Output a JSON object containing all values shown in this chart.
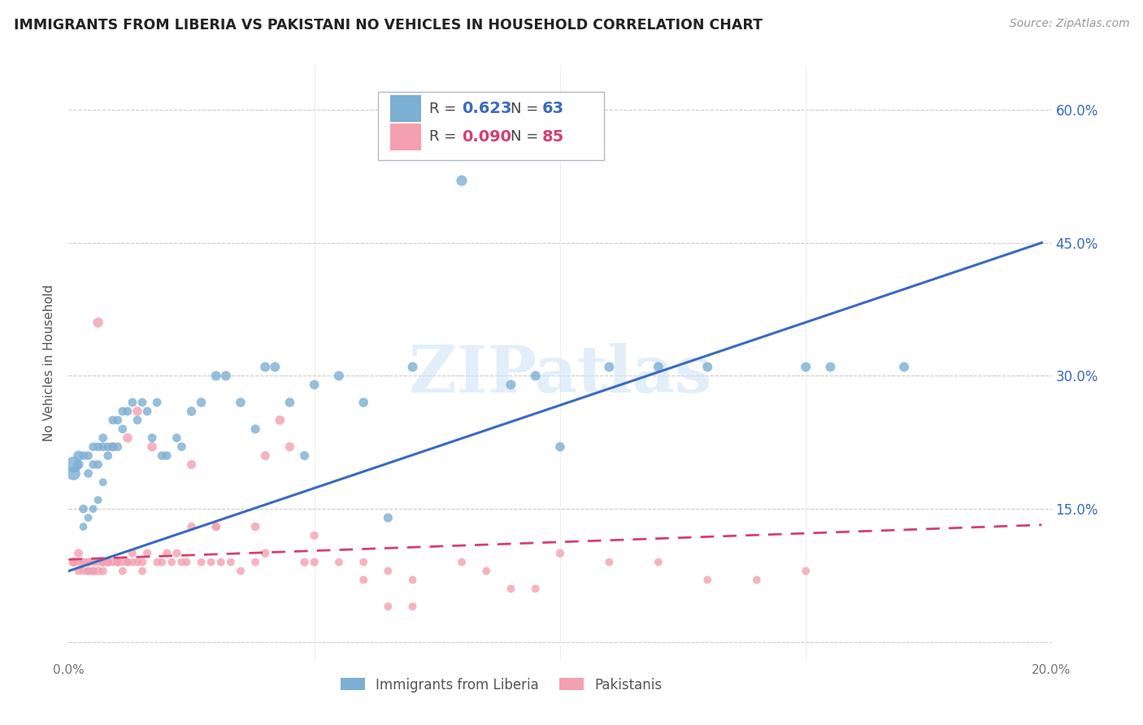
{
  "title": "IMMIGRANTS FROM LIBERIA VS PAKISTANI NO VEHICLES IN HOUSEHOLD CORRELATION CHART",
  "source": "Source: ZipAtlas.com",
  "ylabel": "No Vehicles in Household",
  "watermark": "ZIPatlas",
  "xlim": [
    0.0,
    0.2
  ],
  "ylim": [
    -0.02,
    0.65
  ],
  "xticks": [
    0.0,
    0.05,
    0.1,
    0.15,
    0.2
  ],
  "xtick_labels": [
    "0.0%",
    "",
    "",
    "",
    "20.0%"
  ],
  "ytick_positions": [
    0.0,
    0.15,
    0.3,
    0.45,
    0.6
  ],
  "ytick_labels": [
    "",
    "15.0%",
    "30.0%",
    "45.0%",
    "60.0%"
  ],
  "series1_label": "Immigrants from Liberia",
  "series1_R": "0.623",
  "series1_N": "63",
  "series1_color": "#7bafd4",
  "series2_label": "Pakistanis",
  "series2_R": "0.090",
  "series2_N": "85",
  "series2_color": "#f4a0b0",
  "trendline1_color": "#3a6abf",
  "trendline2_color": "#d44070",
  "series1_x": [
    0.001,
    0.001,
    0.002,
    0.002,
    0.003,
    0.003,
    0.003,
    0.004,
    0.004,
    0.004,
    0.005,
    0.005,
    0.005,
    0.006,
    0.006,
    0.006,
    0.007,
    0.007,
    0.007,
    0.008,
    0.008,
    0.009,
    0.009,
    0.01,
    0.01,
    0.011,
    0.011,
    0.012,
    0.013,
    0.014,
    0.015,
    0.016,
    0.017,
    0.018,
    0.019,
    0.02,
    0.022,
    0.023,
    0.025,
    0.027,
    0.03,
    0.032,
    0.035,
    0.038,
    0.04,
    0.042,
    0.045,
    0.048,
    0.05,
    0.055,
    0.06,
    0.065,
    0.07,
    0.08,
    0.09,
    0.095,
    0.1,
    0.11,
    0.12,
    0.13,
    0.15,
    0.155,
    0.17
  ],
  "series1_y": [
    0.2,
    0.19,
    0.21,
    0.2,
    0.15,
    0.21,
    0.13,
    0.19,
    0.21,
    0.14,
    0.2,
    0.22,
    0.15,
    0.2,
    0.22,
    0.16,
    0.23,
    0.22,
    0.18,
    0.22,
    0.21,
    0.22,
    0.25,
    0.22,
    0.25,
    0.24,
    0.26,
    0.26,
    0.27,
    0.25,
    0.27,
    0.26,
    0.23,
    0.27,
    0.21,
    0.21,
    0.23,
    0.22,
    0.26,
    0.27,
    0.3,
    0.3,
    0.27,
    0.24,
    0.31,
    0.31,
    0.27,
    0.21,
    0.29,
    0.3,
    0.27,
    0.14,
    0.31,
    0.52,
    0.29,
    0.3,
    0.22,
    0.31,
    0.31,
    0.31,
    0.31,
    0.31,
    0.31
  ],
  "series1_sizes": [
    200,
    150,
    80,
    80,
    60,
    60,
    50,
    60,
    60,
    50,
    60,
    60,
    50,
    60,
    60,
    50,
    60,
    60,
    50,
    60,
    60,
    60,
    60,
    60,
    60,
    60,
    60,
    60,
    60,
    60,
    60,
    60,
    60,
    60,
    60,
    60,
    60,
    60,
    70,
    70,
    75,
    75,
    70,
    65,
    75,
    75,
    70,
    65,
    70,
    75,
    70,
    65,
    75,
    90,
    75,
    75,
    70,
    75,
    75,
    75,
    75,
    75,
    75
  ],
  "series2_x": [
    0.001,
    0.001,
    0.001,
    0.002,
    0.002,
    0.002,
    0.003,
    0.003,
    0.003,
    0.004,
    0.004,
    0.004,
    0.004,
    0.005,
    0.005,
    0.005,
    0.006,
    0.006,
    0.006,
    0.007,
    0.007,
    0.007,
    0.008,
    0.008,
    0.008,
    0.009,
    0.009,
    0.01,
    0.01,
    0.01,
    0.011,
    0.011,
    0.012,
    0.012,
    0.012,
    0.013,
    0.013,
    0.014,
    0.014,
    0.015,
    0.015,
    0.016,
    0.017,
    0.018,
    0.019,
    0.02,
    0.021,
    0.022,
    0.023,
    0.024,
    0.025,
    0.027,
    0.029,
    0.03,
    0.031,
    0.033,
    0.035,
    0.038,
    0.04,
    0.043,
    0.045,
    0.048,
    0.05,
    0.055,
    0.06,
    0.065,
    0.07,
    0.08,
    0.09,
    0.1,
    0.11,
    0.12,
    0.13,
    0.14,
    0.15,
    0.025,
    0.03,
    0.038,
    0.04,
    0.05,
    0.06,
    0.065,
    0.07,
    0.085,
    0.095
  ],
  "series2_y": [
    0.09,
    0.09,
    0.09,
    0.08,
    0.1,
    0.09,
    0.08,
    0.09,
    0.09,
    0.08,
    0.09,
    0.09,
    0.08,
    0.08,
    0.08,
    0.09,
    0.08,
    0.36,
    0.09,
    0.09,
    0.09,
    0.08,
    0.09,
    0.09,
    0.09,
    0.09,
    0.22,
    0.09,
    0.09,
    0.09,
    0.09,
    0.08,
    0.09,
    0.23,
    0.09,
    0.09,
    0.1,
    0.26,
    0.09,
    0.09,
    0.08,
    0.1,
    0.22,
    0.09,
    0.09,
    0.1,
    0.09,
    0.1,
    0.09,
    0.09,
    0.2,
    0.09,
    0.09,
    0.13,
    0.09,
    0.09,
    0.08,
    0.09,
    0.1,
    0.25,
    0.22,
    0.09,
    0.09,
    0.09,
    0.09,
    0.04,
    0.04,
    0.09,
    0.06,
    0.1,
    0.09,
    0.09,
    0.07,
    0.07,
    0.08,
    0.13,
    0.13,
    0.13,
    0.21,
    0.12,
    0.07,
    0.08,
    0.07,
    0.08,
    0.06
  ],
  "series2_sizes": [
    60,
    60,
    55,
    50,
    60,
    50,
    50,
    55,
    50,
    55,
    50,
    55,
    50,
    55,
    50,
    50,
    60,
    80,
    50,
    55,
    50,
    55,
    50,
    55,
    50,
    50,
    70,
    50,
    50,
    50,
    50,
    50,
    50,
    70,
    50,
    50,
    55,
    70,
    50,
    55,
    50,
    55,
    70,
    50,
    50,
    55,
    50,
    55,
    50,
    50,
    65,
    50,
    50,
    55,
    50,
    50,
    50,
    50,
    55,
    70,
    65,
    55,
    55,
    50,
    50,
    50,
    50,
    50,
    50,
    55,
    50,
    50,
    50,
    50,
    50,
    55,
    55,
    60,
    65,
    55,
    50,
    50,
    50,
    50,
    50
  ],
  "trendline1_x0": 0.0,
  "trendline1_y0": 0.08,
  "trendline1_x1": 0.198,
  "trendline1_y1": 0.45,
  "trendline2_x0": 0.0,
  "trendline2_y0": 0.093,
  "trendline2_x1": 0.198,
  "trendline2_y1": 0.132,
  "background_color": "#ffffff",
  "grid_color": "#cccccc"
}
